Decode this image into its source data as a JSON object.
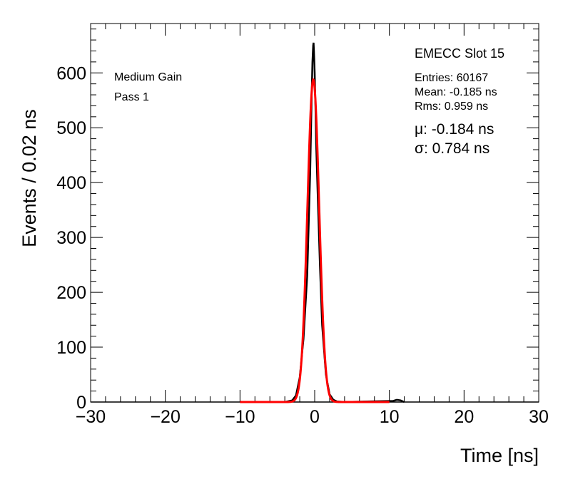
{
  "chart_data": {
    "type": "line",
    "xlabel": "Time [ns]",
    "ylabel": "Events / 0.02 ns",
    "xlim": [
      -30,
      30
    ],
    "ylim": [
      0,
      690
    ],
    "x_ticks": [
      -30,
      -20,
      -10,
      0,
      10,
      20,
      30
    ],
    "x_tick_labels": [
      "−30",
      "−20",
      "−10",
      "0",
      "10",
      "20",
      "30"
    ],
    "y_ticks": [
      0,
      100,
      200,
      300,
      400,
      500,
      600
    ],
    "y_tick_labels": [
      "0",
      "100",
      "200",
      "300",
      "400",
      "500",
      "600"
    ],
    "grid": false,
    "labels": {
      "gain": "Medium Gain",
      "pass": "Pass 1"
    },
    "stats": {
      "title": "EMECC Slot 15",
      "entries": "Entries: 60167",
      "mean": "Mean: -0.185 ns",
      "rms": "Rms: 0.959 ns",
      "mu": "μ: -0.184 ns",
      "sigma": "σ: 0.784 ns"
    },
    "series": [
      {
        "style": "histogram",
        "color": "#000000",
        "entries": 60167,
        "mean": -0.185,
        "rms": 0.959,
        "peak": 655,
        "x": [
          -4.0,
          -3.0,
          -2.5,
          -2.0,
          -1.5,
          -1.0,
          -0.6,
          -0.4,
          -0.3,
          -0.2,
          -0.15,
          -0.1,
          0.0,
          0.1,
          0.2,
          0.4,
          0.7,
          1.0,
          1.5,
          2.0,
          2.5,
          3.0,
          4.0,
          10.5,
          11.0,
          11.5,
          12.0
        ],
        "y": [
          0,
          3,
          12,
          45,
          115,
          230,
          420,
          560,
          620,
          650,
          655,
          640,
          600,
          540,
          470,
          380,
          250,
          140,
          50,
          14,
          4,
          1,
          0,
          2,
          4,
          3,
          0
        ]
      },
      {
        "style": "line",
        "color": "#ff0000",
        "function": "gaussian",
        "amplitude": 588,
        "mu": -0.184,
        "sigma": 0.784,
        "x_range": [
          -10,
          10
        ]
      }
    ]
  }
}
